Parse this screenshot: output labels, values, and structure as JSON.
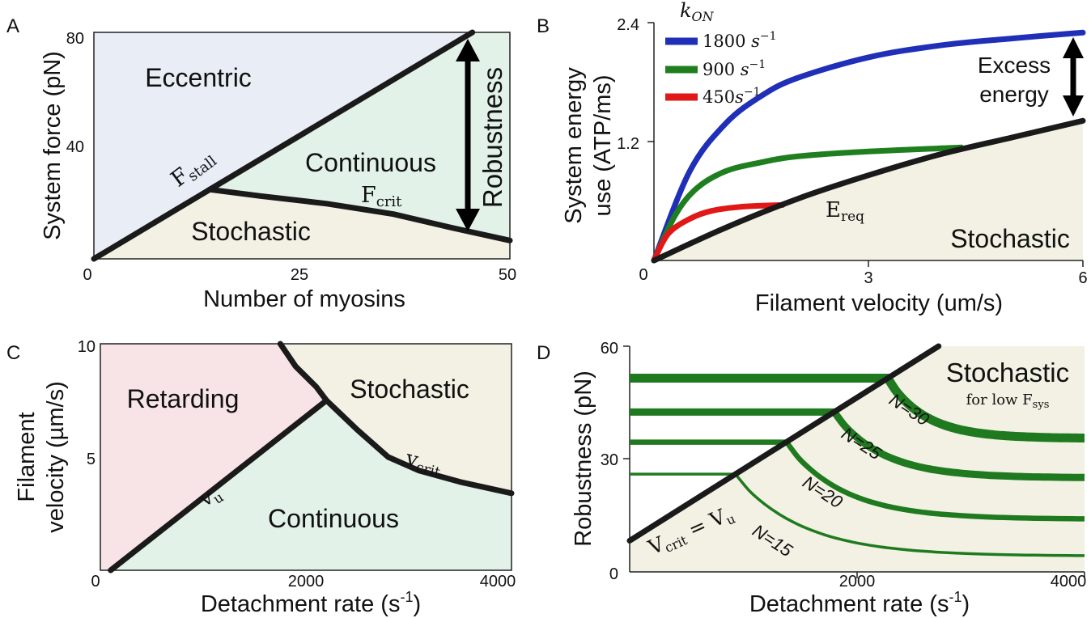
{
  "colors": {
    "blue_region": "#e9edf6",
    "green_region": "#e2f2e9",
    "beige_region": "#f2f1e4",
    "pink_region": "#f8e4e6",
    "boundary": "#1a1a1a",
    "k1800": "#1f2fb8",
    "k900": "#1f7f1f",
    "k450": "#e01818",
    "robust_green": "#1f7a1f"
  },
  "chart_data": [
    {
      "panel": "A",
      "type": "area",
      "xlabel": "Number of myosins",
      "ylabel": "System force (pN)",
      "xlim": [
        0,
        50
      ],
      "ylim": [
        0,
        80
      ],
      "xticks": [
        "0",
        "25",
        "50"
      ],
      "yticks": [
        "40",
        "80"
      ],
      "regions": [
        "Eccentric",
        "Continuous",
        "Stochastic"
      ],
      "annotations": {
        "stall": {
          "main": "F",
          "sub": "stall"
        },
        "crit": {
          "main": "F",
          "sub": "crit"
        },
        "arrow": "Robustness"
      },
      "series": [
        {
          "name": "F_stall",
          "x": [
            0,
            45.5
          ],
          "y": [
            0,
            80
          ]
        },
        {
          "name": "F_crit",
          "x": [
            14,
            20,
            28,
            36,
            43,
            50
          ],
          "y": [
            24.5,
            22.2,
            19.5,
            15.8,
            11,
            6.5
          ]
        }
      ]
    },
    {
      "panel": "B",
      "type": "line",
      "xlabel": "Filament velocity (um/s)",
      "ylabel": "System energy use (ATP/ms)",
      "ylabel_lines": [
        "System energy",
        "use (ATP/ms)"
      ],
      "xlim": [
        0,
        6
      ],
      "ylim": [
        0,
        2.4
      ],
      "xticks": [
        "0",
        "3",
        "6"
      ],
      "yticks": [
        "1.2",
        "2.4"
      ],
      "legend_title": "k_ON",
      "legend_title_parts": {
        "main": "k",
        "sub": "ON"
      },
      "legend": [
        {
          "label": "1800 s^-1",
          "main": "1800 ",
          "unit": "s",
          "sup": "−1"
        },
        {
          "label": "900 s^-1",
          "main": "900 ",
          "unit": "s",
          "sup": "−1"
        },
        {
          "label": "450s^-1",
          "main": "450",
          "unit": "s",
          "sup": "−1"
        }
      ],
      "region_label": "Stochastic",
      "req_label": {
        "main": "E",
        "sub": "req"
      },
      "arrow_label_lines": [
        "Excess",
        "energy"
      ],
      "series": [
        {
          "name": "E_req",
          "x": [
            0,
            1,
            2,
            3,
            4,
            5,
            6
          ],
          "y": [
            0,
            0.33,
            0.62,
            0.86,
            1.07,
            1.24,
            1.41
          ]
        },
        {
          "name": "1800 s^-1",
          "x": [
            0,
            0.5,
            1,
            1.5,
            2,
            3,
            4,
            5,
            6
          ],
          "y": [
            0,
            0.9,
            1.38,
            1.66,
            1.84,
            2.05,
            2.17,
            2.24,
            2.3
          ]
        },
        {
          "name": "900 s^-1",
          "x": [
            0,
            0.3,
            0.6,
            1,
            1.5,
            2,
            3,
            4.3
          ],
          "y": [
            0,
            0.46,
            0.73,
            0.9,
            0.99,
            1.05,
            1.1,
            1.14
          ]
        },
        {
          "name": "450s^-1",
          "x": [
            0,
            0.2,
            0.5,
            0.8,
            1.2,
            1.8
          ],
          "y": [
            0,
            0.27,
            0.42,
            0.5,
            0.54,
            0.56
          ]
        }
      ]
    },
    {
      "panel": "C",
      "type": "area",
      "xlabel": "Detachment rate (s-1)",
      "xlabel_parts": {
        "main": "Detachment rate (s",
        "sup": "-1",
        "tail": ")"
      },
      "ylabel": "Filament velocity (µm/s)",
      "ylabel_lines": [
        "Filament",
        "velocity (µm/s)"
      ],
      "xlim": [
        0,
        4000
      ],
      "ylim": [
        0,
        10
      ],
      "xticks": [
        "0",
        "2000",
        "4000"
      ],
      "yticks": [
        "5",
        "10"
      ],
      "regions": [
        "Retarding",
        "Stochastic",
        "Continuous"
      ],
      "annotations": {
        "u": {
          "main": "v",
          "sub": "u"
        },
        "crit": {
          "main": "v",
          "sub": "crit"
        }
      },
      "series": [
        {
          "name": "v_u",
          "x": [
            100,
            2200
          ],
          "y": [
            0,
            7.5
          ]
        },
        {
          "name": "v_crit",
          "x": [
            1750,
            1900,
            2100,
            2200,
            2500,
            2800,
            3100,
            3500,
            4000
          ],
          "y": [
            10,
            9,
            8.1,
            7.5,
            6.2,
            5,
            4.4,
            3.9,
            3.4
          ]
        }
      ]
    },
    {
      "panel": "D",
      "type": "line",
      "xlabel": "Detachment rate (s-1)",
      "xlabel_parts": {
        "main": "Detachment rate (s",
        "sup": "-1",
        "tail": ")"
      },
      "ylabel": "Robustness (pN)",
      "xlim": [
        0,
        4000
      ],
      "ylim": [
        0,
        60
      ],
      "xticks": [
        "0",
        "2000",
        "4000"
      ],
      "yticks": [
        "0",
        "30",
        "60"
      ],
      "region_label": "Stochastic",
      "region_sublabel": "for low F_sys",
      "region_sublabel_parts": {
        "main": "for low F",
        "sub": "sys"
      },
      "boundary_label": "V_crit = V_u",
      "boundary_label_parts": {
        "a": "V",
        "a_sub": "crit",
        "eq": " = ",
        "b": "V",
        "b_sub": "u"
      },
      "series": [
        {
          "name": "N=30",
          "value": 51.5,
          "x_break": 2270,
          "y_end": 35.5
        },
        {
          "name": "N=25",
          "value": 42.5,
          "x_break": 1800,
          "y_end": 25
        },
        {
          "name": "N=20",
          "value": 34.5,
          "x_break": 1380,
          "y_end": 14
        },
        {
          "name": "N=15",
          "value": 26,
          "x_break": 930,
          "y_end": 4.2
        }
      ]
    }
  ],
  "panel_labels": [
    "A",
    "B",
    "C",
    "D"
  ]
}
